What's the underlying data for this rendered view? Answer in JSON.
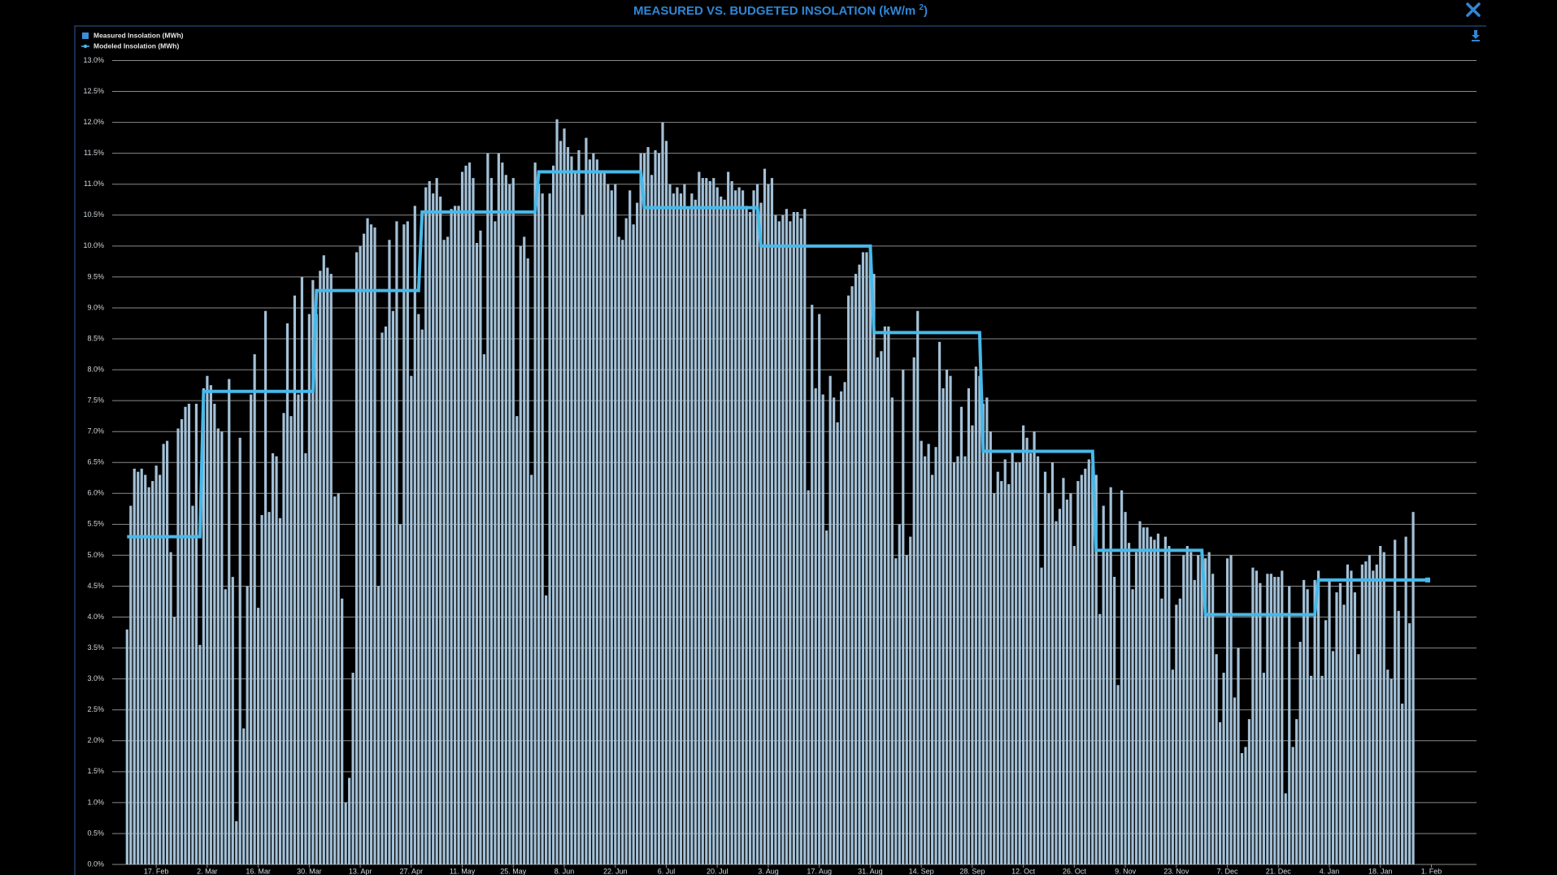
{
  "chart_data": {
    "type": "bar",
    "title": [
      "MEASURED VS. BUDGETED INSOLATION (kW/m ",
      "2",
      ")"
    ],
    "categories": [
      null,
      null,
      null,
      null,
      null,
      null,
      null,
      null,
      "17. Feb",
      null,
      null,
      null,
      null,
      null,
      null,
      null,
      null,
      null,
      null,
      null,
      null,
      null,
      "2. Mar",
      null,
      null,
      null,
      null,
      null,
      null,
      null,
      null,
      null,
      null,
      null,
      null,
      null,
      "16. Mar",
      null,
      null,
      null,
      null,
      null,
      null,
      null,
      null,
      null,
      null,
      null,
      null,
      null,
      "30. Mar",
      null,
      null,
      null,
      null,
      null,
      null,
      null,
      null,
      null,
      null,
      null,
      null,
      null,
      "13. Apr",
      null,
      null,
      null,
      null,
      null,
      null,
      null,
      null,
      null,
      null,
      null,
      null,
      null,
      "27. Apr",
      null,
      null,
      null,
      null,
      null,
      null,
      null,
      null,
      null,
      null,
      null,
      null,
      null,
      "11. May",
      null,
      null,
      null,
      null,
      null,
      null,
      null,
      null,
      null,
      null,
      null,
      null,
      null,
      "25. May",
      null,
      null,
      null,
      null,
      null,
      null,
      null,
      null,
      null,
      null,
      null,
      null,
      null,
      "8. Jun",
      null,
      null,
      null,
      null,
      null,
      null,
      null,
      null,
      null,
      null,
      null,
      null,
      null,
      "22. Jun",
      null,
      null,
      null,
      null,
      null,
      null,
      null,
      null,
      null,
      null,
      null,
      null,
      null,
      "6. Jul",
      null,
      null,
      null,
      null,
      null,
      null,
      null,
      null,
      null,
      null,
      null,
      null,
      null,
      "20. Jul",
      null,
      null,
      null,
      null,
      null,
      null,
      null,
      null,
      null,
      null,
      null,
      null,
      null,
      "3. Aug",
      null,
      null,
      null,
      null,
      null,
      null,
      null,
      null,
      null,
      null,
      null,
      null,
      null,
      "17. Aug",
      null,
      null,
      null,
      null,
      null,
      null,
      null,
      null,
      null,
      null,
      null,
      null,
      null,
      "31. Aug",
      null,
      null,
      null,
      null,
      null,
      null,
      null,
      null,
      null,
      null,
      null,
      null,
      null,
      "14. Sep",
      null,
      null,
      null,
      null,
      null,
      null,
      null,
      null,
      null,
      null,
      null,
      null,
      null,
      "28. Sep",
      null,
      null,
      null,
      null,
      null,
      null,
      null,
      null,
      null,
      null,
      null,
      null,
      null,
      "12. Oct",
      null,
      null,
      null,
      null,
      null,
      null,
      null,
      null,
      null,
      null,
      null,
      null,
      null,
      "26. Oct",
      null,
      null,
      null,
      null,
      null,
      null,
      null,
      null,
      null,
      null,
      null,
      null,
      null,
      "9. Nov",
      null,
      null,
      null,
      null,
      null,
      null,
      null,
      null,
      null,
      null,
      null,
      null,
      null,
      "23. Nov",
      null,
      null,
      null,
      null,
      null,
      null,
      null,
      null,
      null,
      null,
      null,
      null,
      null,
      "7. Dec",
      null,
      null,
      null,
      null,
      null,
      null,
      null,
      null,
      null,
      null,
      null,
      null,
      null,
      "21. Dec",
      null,
      null,
      null,
      null,
      null,
      null,
      null,
      null,
      null,
      null,
      null,
      null,
      null,
      "4. Jan",
      null,
      null,
      null,
      null,
      null,
      null,
      null,
      null,
      null,
      null,
      null,
      null,
      null,
      "18. Jan",
      null,
      null,
      null,
      null,
      null,
      null,
      null,
      null,
      null,
      null,
      null,
      null,
      null,
      "1. Feb"
    ],
    "series": [
      {
        "name": "Measured Insolation (MWh)",
        "type": "bar",
        "color": "#a3c0d6",
        "values": [
          3.8,
          5.8,
          6.4,
          6.35,
          6.4,
          6.3,
          6.1,
          6.2,
          6.45,
          6.3,
          6.8,
          6.85,
          5.05,
          4.0,
          7.05,
          7.2,
          7.4,
          7.45,
          5.8,
          7.45,
          3.55,
          7.7,
          7.9,
          7.75,
          7.45,
          7.05,
          7.0,
          4.45,
          7.85,
          4.65,
          0.7,
          6.9,
          2.2,
          4.5,
          7.6,
          8.25,
          4.15,
          5.65,
          8.95,
          5.7,
          6.65,
          6.6,
          5.6,
          7.3,
          8.75,
          7.25,
          9.2,
          7.6,
          9.5,
          6.65,
          8.9,
          9.45,
          8.9,
          9.6,
          9.85,
          9.65,
          9.55,
          5.95,
          6.0,
          4.3,
          1.0,
          1.4,
          3.1,
          9.9,
          10.0,
          10.2,
          10.45,
          10.35,
          10.3,
          4.5,
          8.6,
          8.7,
          10.1,
          8.95,
          10.4,
          5.5,
          10.35,
          10.4,
          7.9,
          10.65,
          8.9,
          8.65,
          10.95,
          11.05,
          10.85,
          11.1,
          10.8,
          10.1,
          10.15,
          10.6,
          10.65,
          10.65,
          11.2,
          11.3,
          11.35,
          11.1,
          10.05,
          10.25,
          8.25,
          11.5,
          11.1,
          10.4,
          11.5,
          11.35,
          11.15,
          11.0,
          11.1,
          7.25,
          10.0,
          10.15,
          9.8,
          6.3,
          11.35,
          11.0,
          10.85,
          4.35,
          10.85,
          11.3,
          12.05,
          11.7,
          11.9,
          11.6,
          11.45,
          11.2,
          11.55,
          10.5,
          11.75,
          11.4,
          11.5,
          11.4,
          11.2,
          11.2,
          11.0,
          10.9,
          11.0,
          10.15,
          10.1,
          10.45,
          10.9,
          10.35,
          10.7,
          11.5,
          11.5,
          11.6,
          11.15,
          11.55,
          11.5,
          12.0,
          11.7,
          11.0,
          10.85,
          10.95,
          10.85,
          11.0,
          10.6,
          10.85,
          10.75,
          11.2,
          11.1,
          11.1,
          11.05,
          11.1,
          10.95,
          10.8,
          10.75,
          11.2,
          11.05,
          10.9,
          10.95,
          10.9,
          10.65,
          10.55,
          10.9,
          11.0,
          10.7,
          11.25,
          11.0,
          11.1,
          10.5,
          10.4,
          10.5,
          10.6,
          10.4,
          10.55,
          10.55,
          10.45,
          10.6,
          6.05,
          9.05,
          7.7,
          8.9,
          7.6,
          5.4,
          7.9,
          7.55,
          7.15,
          7.65,
          7.8,
          9.2,
          9.35,
          9.55,
          9.7,
          9.9,
          9.9,
          9.85,
          9.55,
          8.2,
          8.3,
          8.7,
          8.7,
          7.55,
          4.95,
          5.5,
          8.0,
          5.0,
          5.3,
          8.2,
          8.95,
          6.85,
          6.6,
          6.8,
          6.3,
          6.75,
          8.45,
          7.7,
          8.0,
          7.9,
          6.5,
          6.6,
          7.4,
          6.6,
          7.7,
          7.1,
          8.05,
          7.9,
          7.45,
          7.55,
          7.0,
          6.0,
          6.35,
          6.2,
          6.55,
          6.15,
          6.7,
          6.5,
          6.5,
          7.1,
          6.9,
          6.65,
          7.0,
          6.6,
          4.8,
          6.35,
          6.0,
          6.5,
          5.55,
          5.75,
          6.25,
          5.9,
          6.0,
          5.15,
          6.2,
          6.3,
          6.4,
          6.55,
          6.45,
          6.3,
          4.05,
          5.8,
          5.05,
          6.1,
          4.65,
          2.9,
          6.05,
          5.7,
          5.2,
          4.45,
          5.05,
          5.55,
          5.45,
          5.45,
          5.3,
          5.25,
          5.35,
          4.3,
          5.3,
          5.15,
          3.15,
          4.2,
          4.3,
          5.0,
          5.15,
          5.05,
          4.6,
          5.0,
          5.0,
          4.95,
          5.05,
          4.7,
          3.4,
          2.3,
          3.1,
          4.95,
          5.0,
          2.7,
          3.5,
          1.8,
          1.9,
          2.35,
          4.8,
          4.75,
          4.55,
          3.1,
          4.7,
          4.7,
          4.65,
          4.65,
          4.75,
          1.15,
          4.5,
          1.9,
          2.35,
          3.6,
          4.6,
          4.45,
          3.05,
          4.6,
          4.75,
          3.05,
          3.95,
          4.6,
          3.45,
          4.4,
          4.55,
          4.2,
          4.85,
          4.75,
          4.4,
          3.4,
          4.85,
          4.9,
          5.0,
          4.75,
          4.85,
          5.15,
          5.05,
          3.15,
          3.0,
          5.25,
          4.1,
          2.6,
          5.3,
          3.9,
          5.7,
          null,
          null,
          null,
          null,
          null
        ]
      },
      {
        "name": "Modeled Insolation (MWh)",
        "type": "line",
        "color": "#47b9ea",
        "values": [
          5.3,
          5.3,
          5.3,
          5.3,
          5.3,
          5.3,
          5.3,
          5.3,
          5.3,
          5.3,
          5.3,
          5.3,
          5.3,
          5.3,
          5.3,
          5.3,
          5.3,
          5.3,
          5.3,
          5.3,
          5.3,
          7.65,
          7.65,
          7.65,
          7.65,
          7.65,
          7.65,
          7.65,
          7.65,
          7.65,
          7.65,
          7.65,
          7.65,
          7.65,
          7.65,
          7.65,
          7.65,
          7.65,
          7.65,
          7.65,
          7.65,
          7.65,
          7.65,
          7.65,
          7.65,
          7.65,
          7.65,
          7.65,
          7.65,
          7.65,
          7.65,
          7.65,
          9.28,
          9.28,
          9.28,
          9.28,
          9.28,
          9.28,
          9.28,
          9.28,
          9.28,
          9.28,
          9.28,
          9.28,
          9.28,
          9.28,
          9.28,
          9.28,
          9.28,
          9.28,
          9.28,
          9.28,
          9.28,
          9.28,
          9.28,
          9.28,
          9.28,
          9.28,
          9.28,
          9.28,
          9.28,
          10.55,
          10.55,
          10.55,
          10.55,
          10.55,
          10.55,
          10.55,
          10.55,
          10.55,
          10.55,
          10.55,
          10.55,
          10.55,
          10.55,
          10.55,
          10.55,
          10.55,
          10.55,
          10.55,
          10.55,
          10.55,
          10.55,
          10.55,
          10.55,
          10.55,
          10.55,
          10.55,
          10.55,
          10.55,
          10.55,
          10.55,
          10.55,
          11.2,
          11.2,
          11.2,
          11.2,
          11.2,
          11.2,
          11.2,
          11.2,
          11.2,
          11.2,
          11.2,
          11.2,
          11.2,
          11.2,
          11.2,
          11.2,
          11.2,
          11.2,
          11.2,
          11.2,
          11.2,
          11.2,
          11.2,
          11.2,
          11.2,
          11.2,
          11.2,
          11.2,
          11.2,
          10.62,
          10.62,
          10.62,
          10.62,
          10.62,
          10.62,
          10.62,
          10.62,
          10.62,
          10.62,
          10.62,
          10.62,
          10.62,
          10.62,
          10.62,
          10.62,
          10.62,
          10.62,
          10.62,
          10.62,
          10.62,
          10.62,
          10.62,
          10.62,
          10.62,
          10.62,
          10.62,
          10.62,
          10.62,
          10.62,
          10.62,
          10.62,
          10,
          10,
          10,
          10,
          10,
          10,
          10,
          10,
          10,
          10,
          10,
          10,
          10,
          10,
          10,
          10,
          10,
          10,
          10,
          10,
          10,
          10,
          10,
          10,
          10,
          10,
          10,
          10,
          10,
          10,
          10,
          8.6,
          8.6,
          8.6,
          8.6,
          8.6,
          8.6,
          8.6,
          8.6,
          8.6,
          8.6,
          8.6,
          8.6,
          8.6,
          8.6,
          8.6,
          8.6,
          8.6,
          8.6,
          8.6,
          8.6,
          8.6,
          8.6,
          8.6,
          8.6,
          8.6,
          8.6,
          8.6,
          8.6,
          8.6,
          8.6,
          6.68,
          6.68,
          6.68,
          6.68,
          6.68,
          6.68,
          6.68,
          6.68,
          6.68,
          6.68,
          6.68,
          6.68,
          6.68,
          6.68,
          6.68,
          6.68,
          6.68,
          6.68,
          6.68,
          6.68,
          6.68,
          6.68,
          6.68,
          6.68,
          6.68,
          6.68,
          6.68,
          6.68,
          6.68,
          6.68,
          6.68,
          5.08,
          5.08,
          5.08,
          5.08,
          5.08,
          5.08,
          5.08,
          5.08,
          5.08,
          5.08,
          5.08,
          5.08,
          5.08,
          5.08,
          5.08,
          5.08,
          5.08,
          5.08,
          5.08,
          5.08,
          5.08,
          5.08,
          5.08,
          5.08,
          5.08,
          5.08,
          5.08,
          5.08,
          5.08,
          5.08,
          4.04,
          4.04,
          4.04,
          4.04,
          4.04,
          4.04,
          4.04,
          4.04,
          4.04,
          4.04,
          4.04,
          4.04,
          4.04,
          4.04,
          4.04,
          4.04,
          4.04,
          4.04,
          4.04,
          4.04,
          4.04,
          4.04,
          4.04,
          4.04,
          4.04,
          4.04,
          4.04,
          4.04,
          4.04,
          4.04,
          4.04,
          4.6,
          4.6,
          4.6,
          4.6,
          4.6,
          4.6,
          4.6,
          4.6,
          4.6,
          4.6,
          4.6,
          4.6,
          4.6,
          4.6,
          4.6,
          4.6,
          4.6,
          4.6,
          4.6,
          4.6,
          4.6,
          4.6,
          4.6,
          4.6,
          4.6,
          4.6,
          4.6,
          4.6,
          4.6,
          4.6,
          4.6,
          null
        ]
      }
    ],
    "ylim": [
      0,
      13
    ],
    "yticks": [
      {
        "value": 0,
        "label": "0.0%"
      },
      {
        "value": 0.5,
        "label": "0.5%"
      },
      {
        "value": 1,
        "label": "1.0%"
      },
      {
        "value": 1.5,
        "label": "1.5%"
      },
      {
        "value": 2,
        "label": "2.0%"
      },
      {
        "value": 2.5,
        "label": "2.5%"
      },
      {
        "value": 3,
        "label": "3.0%"
      },
      {
        "value": 3.5,
        "label": "3.5%"
      },
      {
        "value": 4,
        "label": "4.0%"
      },
      {
        "value": 4.5,
        "label": "4.5%"
      },
      {
        "value": 5,
        "label": "5.0%"
      },
      {
        "value": 5.5,
        "label": "5.5%"
      },
      {
        "value": 6,
        "label": "6.0%"
      },
      {
        "value": 6.5,
        "label": "6.5%"
      },
      {
        "value": 7,
        "label": "7.0%"
      },
      {
        "value": 7.5,
        "label": "7.5%"
      },
      {
        "value": 8,
        "label": "8.0%"
      },
      {
        "value": 8.5,
        "label": "8.5%"
      },
      {
        "value": 9,
        "label": "9.0%"
      },
      {
        "value": 9.5,
        "label": "9.5%"
      },
      {
        "value": 10,
        "label": "10.0%"
      },
      {
        "value": 10.5,
        "label": "10.5%"
      },
      {
        "value": 11,
        "label": "11.0%"
      },
      {
        "value": 11.5,
        "label": "11.5%"
      },
      {
        "value": 12,
        "label": "12.0%"
      },
      {
        "value": 12.5,
        "label": "12.5%"
      },
      {
        "value": 13,
        "label": "13.0%"
      }
    ],
    "grid": true,
    "legend": "top-left"
  }
}
